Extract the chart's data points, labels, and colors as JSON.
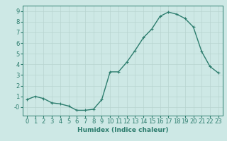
{
  "x": [
    0,
    1,
    2,
    3,
    4,
    5,
    6,
    7,
    8,
    9,
    10,
    11,
    12,
    13,
    14,
    15,
    16,
    17,
    18,
    19,
    20,
    21,
    22,
    23
  ],
  "y": [
    0.7,
    1.0,
    0.8,
    0.4,
    0.3,
    0.1,
    -0.3,
    -0.3,
    -0.2,
    0.7,
    3.3,
    3.3,
    4.2,
    5.3,
    6.5,
    7.3,
    8.5,
    8.9,
    8.7,
    8.3,
    7.5,
    5.2,
    3.8,
    3.2
  ],
  "line_color": "#2d7d6e",
  "marker": "+",
  "markersize": 3.5,
  "linewidth": 1.0,
  "xlabel": "Humidex (Indice chaleur)",
  "xlim": [
    -0.5,
    23.5
  ],
  "ylim": [
    -0.8,
    9.5
  ],
  "yticks": [
    0,
    1,
    2,
    3,
    4,
    5,
    6,
    7,
    8,
    9
  ],
  "ytick_labels": [
    "-0",
    "1",
    "2",
    "3",
    "4",
    "5",
    "6",
    "7",
    "8",
    "9"
  ],
  "xticks": [
    0,
    1,
    2,
    3,
    4,
    5,
    6,
    7,
    8,
    9,
    10,
    11,
    12,
    13,
    14,
    15,
    16,
    17,
    18,
    19,
    20,
    21,
    22,
    23
  ],
  "bg_color": "#cde8e5",
  "grid_color": "#b8d4d0",
  "font_color": "#2d7d6e",
  "xlabel_fontsize": 6.5,
  "tick_fontsize": 6.0
}
